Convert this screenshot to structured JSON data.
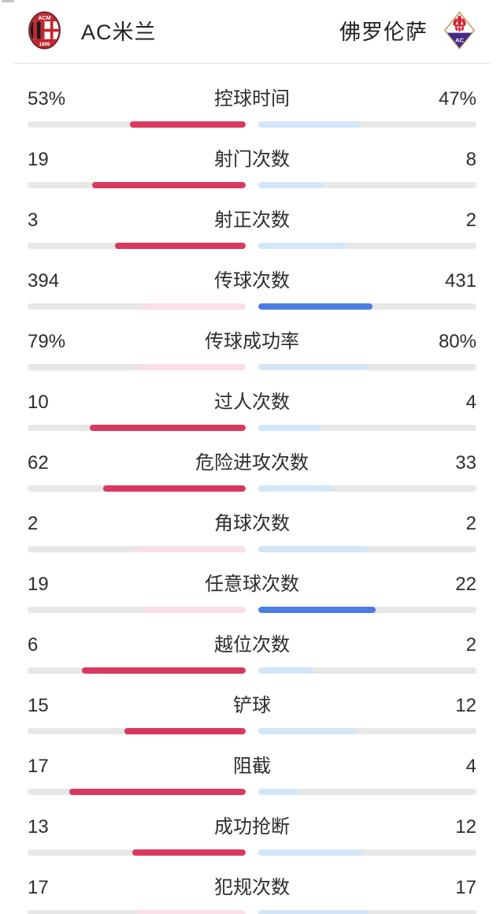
{
  "header": {
    "home_team": "AC米兰",
    "away_team": "佛罗伦萨",
    "home_logo": "ac-milan-crest",
    "away_logo": "fiorentina-crest"
  },
  "colors": {
    "home_solid": "#d9395e",
    "home_light": "#fadfe7",
    "away_solid": "#4a7ce2",
    "away_light": "#d2e6f8",
    "track": "#e7e7e7"
  },
  "stats": [
    {
      "label": "控球时间",
      "home": "53%",
      "away": "47%",
      "home_ratio": 0.53,
      "away_ratio": 0.47,
      "home_hl": true,
      "away_hl": false
    },
    {
      "label": "射门次数",
      "home": "19",
      "away": "8",
      "home_ratio": 0.704,
      "away_ratio": 0.296,
      "home_hl": true,
      "away_hl": false
    },
    {
      "label": "射正次数",
      "home": "3",
      "away": "2",
      "home_ratio": 0.6,
      "away_ratio": 0.4,
      "home_hl": true,
      "away_hl": false
    },
    {
      "label": "传球次数",
      "home": "394",
      "away": "431",
      "home_ratio": 0.478,
      "away_ratio": 0.522,
      "home_hl": false,
      "away_hl": true
    },
    {
      "label": "传球成功率",
      "home": "79%",
      "away": "80%",
      "home_ratio": 0.497,
      "away_ratio": 0.503,
      "home_hl": false,
      "away_hl": false
    },
    {
      "label": "过人次数",
      "home": "10",
      "away": "4",
      "home_ratio": 0.714,
      "away_ratio": 0.286,
      "home_hl": true,
      "away_hl": false
    },
    {
      "label": "危险进攻次数",
      "home": "62",
      "away": "33",
      "home_ratio": 0.653,
      "away_ratio": 0.347,
      "home_hl": true,
      "away_hl": false
    },
    {
      "label": "角球次数",
      "home": "2",
      "away": "2",
      "home_ratio": 0.5,
      "away_ratio": 0.5,
      "home_hl": false,
      "away_hl": false
    },
    {
      "label": "任意球次数",
      "home": "19",
      "away": "22",
      "home_ratio": 0.463,
      "away_ratio": 0.537,
      "home_hl": false,
      "away_hl": true
    },
    {
      "label": "越位次数",
      "home": "6",
      "away": "2",
      "home_ratio": 0.75,
      "away_ratio": 0.25,
      "home_hl": true,
      "away_hl": false
    },
    {
      "label": "铲球",
      "home": "15",
      "away": "12",
      "home_ratio": 0.556,
      "away_ratio": 0.444,
      "home_hl": true,
      "away_hl": false
    },
    {
      "label": "阻截",
      "home": "17",
      "away": "4",
      "home_ratio": 0.81,
      "away_ratio": 0.19,
      "home_hl": true,
      "away_hl": false
    },
    {
      "label": "成功抢断",
      "home": "13",
      "away": "12",
      "home_ratio": 0.52,
      "away_ratio": 0.48,
      "home_hl": true,
      "away_hl": false
    },
    {
      "label": "犯规次数",
      "home": "17",
      "away": "17",
      "home_ratio": 0.5,
      "away_ratio": 0.5,
      "home_hl": false,
      "away_hl": false
    }
  ],
  "chart_data": {
    "type": "bar",
    "title": "AC米兰 vs 佛罗伦萨 比赛统计",
    "categories": [
      "控球时间",
      "射门次数",
      "射正次数",
      "传球次数",
      "传球成功率",
      "过人次数",
      "危险进攻次数",
      "角球次数",
      "任意球次数",
      "越位次数",
      "铲球",
      "阻截",
      "成功抢断",
      "犯规次数"
    ],
    "series": [
      {
        "name": "AC米兰",
        "values": [
          53,
          19,
          3,
          394,
          79,
          10,
          62,
          2,
          19,
          6,
          15,
          17,
          13,
          17
        ]
      },
      {
        "name": "佛罗伦萨",
        "values": [
          47,
          8,
          2,
          431,
          80,
          4,
          33,
          2,
          22,
          2,
          12,
          4,
          12,
          17
        ]
      }
    ],
    "value_units": [
      "%",
      "",
      "",
      "",
      "%",
      "",
      "",
      "",
      "",
      "",
      "",
      "",
      "",
      ""
    ],
    "layout": "paired horizontal bars per category, home bar grows right-to-left from center, away bar grows left-to-right from center"
  }
}
